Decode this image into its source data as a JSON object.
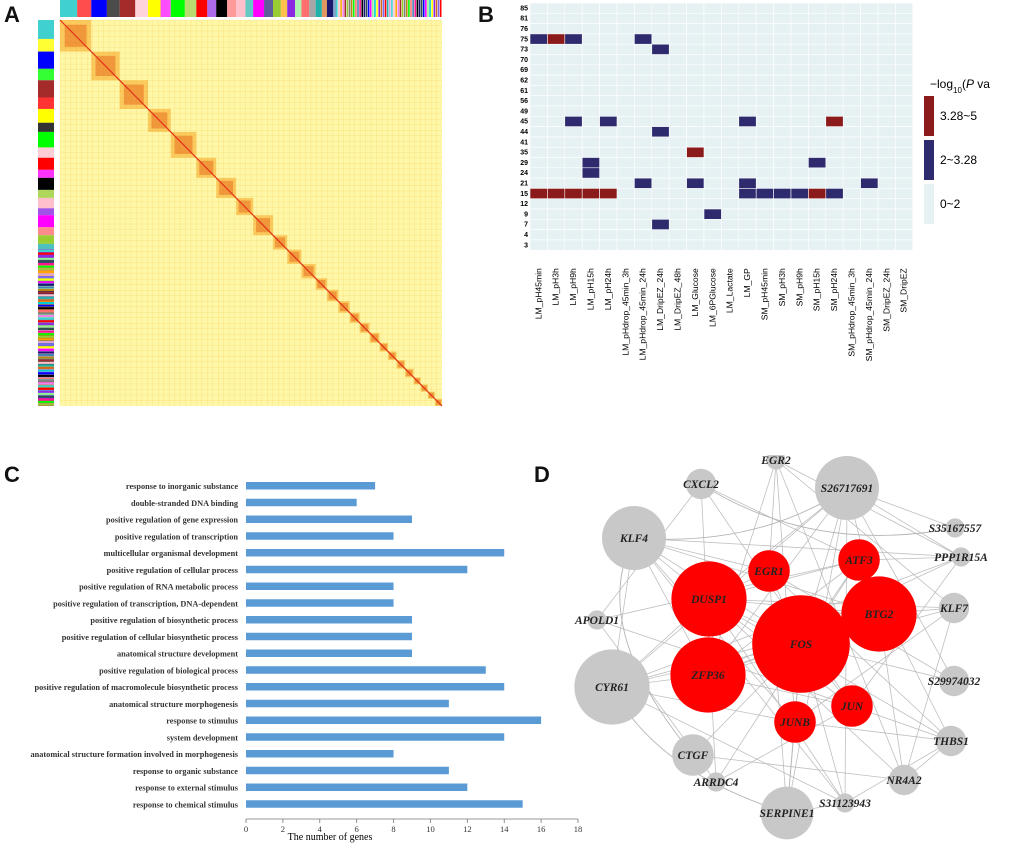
{
  "panel_labels": {
    "a": "A",
    "b": "B",
    "c": "C",
    "d": "D"
  },
  "colors": {
    "bar": "#5b9bd5",
    "heat_low": "#e6f1f3",
    "heat_mid": "#2e2a6e",
    "heat_high": "#8b1a1a",
    "node_red": "#ff0000",
    "node_gray": "#c8c8c8",
    "edge": "#b4b4b4",
    "matrix_bg": "#fff7a8",
    "matrix_diag": "#e6661a"
  },
  "panel_a": {
    "type": "clustered correlation heatmap",
    "module_colors": [
      "#40d0d0",
      "#0000ff",
      "#a52a2a",
      "#ffff00",
      "#00ff00",
      "#ff0000",
      "#000000",
      "#ffc0cb",
      "#ff00ff",
      "#9acd32",
      "#8a2be2",
      "#ff6f6f",
      "#20b2aa",
      "#191970",
      "#ffa500",
      "#90ee90",
      "#808080",
      "#d2691e",
      "#4682b4",
      "#dda0dd",
      "#2f4f4f",
      "#ee82ee",
      "#00ced1",
      "#b8860b",
      "#7b68ee",
      "#ff1493"
    ]
  },
  "chart_data": [
    {
      "type": "heatmap",
      "panel": "B",
      "title": "",
      "legend_title_prefix": "−log",
      "legend_title_sub": "10",
      "legend_title_open": "(",
      "legend_title_italic": "P",
      "legend_title_close": " value)",
      "legend": [
        {
          "label": "3.28~5",
          "level": 2
        },
        {
          "label": "2~3.28",
          "level": 1
        },
        {
          "label": "0~2",
          "level": 0
        }
      ],
      "rows": [
        "85",
        "81",
        "76",
        "75",
        "73",
        "70",
        "69",
        "62",
        "61",
        "56",
        "49",
        "45",
        "44",
        "41",
        "35",
        "29",
        "24",
        "21",
        "15",
        "12",
        "9",
        "7",
        "4",
        "3"
      ],
      "columns": [
        "LM_pH45min",
        "LM_pH3h",
        "LM_pH9h",
        "LM_pH15h",
        "LM_pH24h",
        "LM_pHdrop_45min_3h",
        "LM_pHdrop_45min_24h",
        "LM_DripEZ_24h",
        "LM_DripEZ_48h",
        "LM_Glucose",
        "LM_6PGlucose",
        "LM_Lactate",
        "LM_GP",
        "SM_pH45min",
        "SM_pH3h",
        "SM_pH9h",
        "SM_pH15h",
        "SM_pH24h",
        "SM_pHdrop_45min_3h",
        "SM_pHdrop_45min_24h",
        "SM_DripEZ_24h",
        "SM_DripEZ"
      ],
      "cells": [
        {
          "row": "75",
          "col": "LM_pH45min",
          "level": 1
        },
        {
          "row": "75",
          "col": "LM_pH3h",
          "level": 2
        },
        {
          "row": "75",
          "col": "LM_pH9h",
          "level": 1
        },
        {
          "row": "75",
          "col": "LM_pHdrop_45min_24h",
          "level": 1
        },
        {
          "row": "73",
          "col": "LM_DripEZ_24h",
          "level": 1
        },
        {
          "row": "45",
          "col": "LM_pH9h",
          "level": 1
        },
        {
          "row": "45",
          "col": "LM_pH24h",
          "level": 1
        },
        {
          "row": "45",
          "col": "LM_GP",
          "level": 1
        },
        {
          "row": "45",
          "col": "SM_pH24h",
          "level": 2
        },
        {
          "row": "44",
          "col": "LM_DripEZ_24h",
          "level": 1
        },
        {
          "row": "35",
          "col": "LM_Glucose",
          "level": 2
        },
        {
          "row": "29",
          "col": "LM_pH15h",
          "level": 1
        },
        {
          "row": "29",
          "col": "SM_pH15h",
          "level": 1
        },
        {
          "row": "24",
          "col": "LM_pH15h",
          "level": 1
        },
        {
          "row": "21",
          "col": "LM_pHdrop_45min_24h",
          "level": 1
        },
        {
          "row": "21",
          "col": "LM_Glucose",
          "level": 1
        },
        {
          "row": "21",
          "col": "LM_GP",
          "level": 1
        },
        {
          "row": "21",
          "col": "SM_pHdrop_45min_24h",
          "level": 1
        },
        {
          "row": "15",
          "col": "LM_pH45min",
          "level": 2
        },
        {
          "row": "15",
          "col": "LM_pH3h",
          "level": 2
        },
        {
          "row": "15",
          "col": "LM_pH9h",
          "level": 2
        },
        {
          "row": "15",
          "col": "LM_pH15h",
          "level": 2
        },
        {
          "row": "15",
          "col": "LM_pH24h",
          "level": 2
        },
        {
          "row": "15",
          "col": "LM_GP",
          "level": 1
        },
        {
          "row": "15",
          "col": "SM_pH45min",
          "level": 1
        },
        {
          "row": "15",
          "col": "SM_pH3h",
          "level": 1
        },
        {
          "row": "15",
          "col": "SM_pH9h",
          "level": 1
        },
        {
          "row": "15",
          "col": "SM_pH15h",
          "level": 2
        },
        {
          "row": "15",
          "col": "SM_pH24h",
          "level": 1
        },
        {
          "row": "9",
          "col": "LM_6PGlucose",
          "level": 1
        },
        {
          "row": "7",
          "col": "LM_DripEZ_24h",
          "level": 1
        }
      ]
    },
    {
      "type": "bar",
      "orientation": "horizontal",
      "panel": "C",
      "title": "",
      "xlabel": "The number of genes",
      "ylabel": "",
      "xlim": [
        0,
        18
      ],
      "xticks": [
        0,
        2,
        4,
        6,
        8,
        10,
        12,
        14,
        16,
        18
      ],
      "categories": [
        "response to inorganic substance",
        "double-stranded DNA binding",
        "positive regulation of gene expression",
        "positive regulation of transcription",
        "multicellular organismal development",
        "positive regulation of cellular process",
        "positive regulation of RNA metabolic process",
        "positive regulation of transcription, DNA-dependent",
        "positive regulation of biosynthetic process",
        "positive regulation of cellular biosynthetic process",
        "anatomical structure development",
        "positive regulation of biological process",
        "positive regulation of macromolecule biosynthetic process",
        "anatomical structure morphogenesis",
        "response to stimulus",
        "system development",
        "anatomical structure formation involved in morphogenesis",
        "response to organic substance",
        "response to external stimulus",
        "response to chemical stimulus"
      ],
      "values": [
        7,
        6,
        9,
        8,
        14,
        12,
        8,
        8,
        9,
        9,
        9,
        13,
        14,
        11,
        16,
        14,
        8,
        11,
        12,
        15
      ]
    }
  ],
  "panel_d": {
    "type": "network",
    "nodes": [
      {
        "id": "EGR2",
        "label": "EGR2",
        "color": "gray",
        "size": 1
      },
      {
        "id": "CXCL2",
        "label": "CXCL2",
        "color": "gray",
        "size": 2
      },
      {
        "id": "S26717691",
        "label": "S26717691",
        "color": "gray",
        "size": 5
      },
      {
        "id": "S35167557",
        "label": "S35167557",
        "color": "gray",
        "size": 1
      },
      {
        "id": "PPP1R15A",
        "label": "PPP1R15A",
        "color": "gray",
        "size": 1
      },
      {
        "id": "KLF4",
        "label": "KLF4",
        "color": "gray",
        "size": 5
      },
      {
        "id": "ATF3",
        "label": "ATF3",
        "color": "red",
        "size": 3
      },
      {
        "id": "EGR1",
        "label": "EGR1",
        "color": "red",
        "size": 3
      },
      {
        "id": "DUSP1",
        "label": "DUSP1",
        "color": "red",
        "size": 6
      },
      {
        "id": "BTG2",
        "label": "BTG2",
        "color": "red",
        "size": 6
      },
      {
        "id": "KLF7",
        "label": "KLF7",
        "color": "gray",
        "size": 2
      },
      {
        "id": "APOLD1",
        "label": "APOLD1",
        "color": "gray",
        "size": 1
      },
      {
        "id": "FOS",
        "label": "FOS",
        "color": "red",
        "size": 8
      },
      {
        "id": "S29974032",
        "label": "S29974032",
        "color": "gray",
        "size": 2
      },
      {
        "id": "ZFP36",
        "label": "ZFP36",
        "color": "red",
        "size": 6
      },
      {
        "id": "CYR61",
        "label": "CYR61",
        "color": "gray",
        "size": 6
      },
      {
        "id": "JUN",
        "label": "JUN",
        "color": "red",
        "size": 3
      },
      {
        "id": "JUNB",
        "label": "JUNB",
        "color": "red",
        "size": 3
      },
      {
        "id": "THBS1",
        "label": "THBS1",
        "color": "gray",
        "size": 2
      },
      {
        "id": "CTGF",
        "label": "CTGF",
        "color": "gray",
        "size": 3
      },
      {
        "id": "NR4A2",
        "label": "NR4A2",
        "color": "gray",
        "size": 2
      },
      {
        "id": "ARRDC4",
        "label": "ARRDC4",
        "color": "gray",
        "size": 1
      },
      {
        "id": "S31123943",
        "label": "S31123943",
        "color": "gray",
        "size": 1
      },
      {
        "id": "SERPINE1",
        "label": "SERPINE1",
        "color": "gray",
        "size": 4
      }
    ]
  }
}
